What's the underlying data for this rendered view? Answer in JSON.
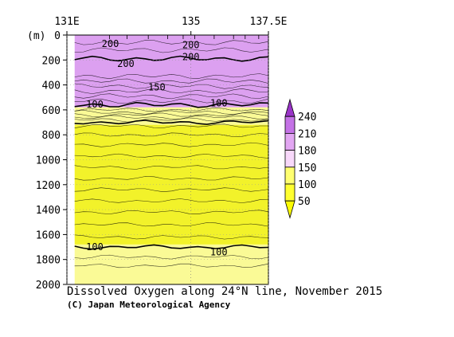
{
  "chart_data": {
    "type": "heatmap",
    "title": "Dissolved Oxygen along 24°N line, November 2015",
    "credit": "(C) Japan Meteorological Agency",
    "ylabel": "(m)",
    "x_ticks": [
      "131E",
      "135",
      "137.5E"
    ],
    "x_tick_values": [
      131,
      135,
      137.5
    ],
    "xlim": [
      131,
      137.5
    ],
    "y_ticks": [
      "0",
      "200",
      "400",
      "600",
      "800",
      "1000",
      "1200",
      "1400",
      "1600",
      "1800",
      "2000"
    ],
    "y_tick_values": [
      0,
      200,
      400,
      600,
      800,
      1000,
      1200,
      1400,
      1600,
      1800,
      2000
    ],
    "ylim": [
      0,
      2000
    ],
    "y_inverted": true,
    "colorbar": {
      "levels": [
        "240",
        "210",
        "180",
        "150",
        "100",
        "50"
      ],
      "level_values": [
        240,
        210,
        180,
        150,
        100,
        50
      ],
      "colors": [
        "#9a34c8",
        "#c472e6",
        "#e2a6f2",
        "#f8d8fa",
        "#ffff70",
        "#ffff30",
        "#fcfc02"
      ]
    },
    "bands": [
      {
        "top": 0,
        "bottom": 580,
        "color": "#dca0f0"
      },
      {
        "top": 580,
        "bottom": 720,
        "color": "#fafa96"
      },
      {
        "top": 720,
        "bottom": 1680,
        "color": "#f2f22a"
      },
      {
        "top": 1680,
        "bottom": 2000,
        "color": "#fafa96"
      }
    ],
    "data_start_x": 131.25,
    "contour_depths": [
      60,
      120,
      190,
      330,
      370,
      410,
      450,
      490,
      530,
      560,
      600,
      620,
      640,
      660,
      680,
      700,
      730,
      800,
      880,
      970,
      1060,
      1150,
      1240,
      1330,
      1420,
      1520,
      1620,
      1700,
      1780,
      1850
    ],
    "bold_contour_depths": [
      190,
      560,
      700,
      1700
    ],
    "contour_labels": [
      {
        "text": "200",
        "x": 132.4,
        "y": 70
      },
      {
        "text": "200",
        "x": 135.0,
        "y": 80
      },
      {
        "text": "200",
        "x": 135.0,
        "y": 175
      },
      {
        "text": "200",
        "x": 132.9,
        "y": 230
      },
      {
        "text": "150",
        "x": 133.9,
        "y": 420
      },
      {
        "text": "100",
        "x": 131.9,
        "y": 555
      },
      {
        "text": "100",
        "x": 135.9,
        "y": 545
      },
      {
        "text": "100",
        "x": 131.9,
        "y": 1700
      },
      {
        "text": "100",
        "x": 135.9,
        "y": 1740
      }
    ]
  }
}
